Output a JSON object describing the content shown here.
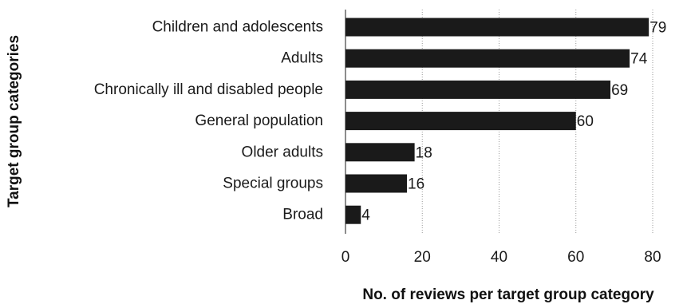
{
  "chart_data": {
    "type": "bar",
    "orientation": "horizontal",
    "categories": [
      "Children and adolescents",
      "Adults",
      "Chronically ill and disabled people",
      "General population",
      "Older adults",
      "Special groups",
      "Broad"
    ],
    "values": [
      79,
      74,
      69,
      60,
      18,
      16,
      4
    ],
    "xlabel": "No. of reviews per target group category",
    "ylabel": "Target group categories",
    "xlim": [
      0,
      80
    ],
    "xticks": [
      "0",
      "20",
      "40",
      "60",
      "80"
    ],
    "grid": "vertical dotted",
    "bar_color": "#1a1a1a"
  }
}
